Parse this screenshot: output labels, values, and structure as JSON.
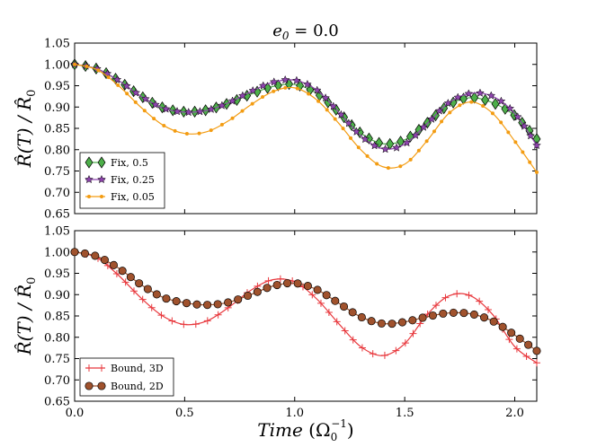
{
  "chart_data": {
    "type": "line",
    "title": "e_0 = 0.0",
    "title_parts": {
      "var": "e",
      "sub": "0",
      "rest": " = 0.0"
    },
    "xlabel": "Time (Ω_0^-1)",
    "xlabel_parts": {
      "main": "Time",
      "open": " (Ω",
      "sub": "0",
      "sup": "−1",
      "close": ")"
    },
    "ylabel": "R̂(T) / R̂_0",
    "ylabel_parts": {
      "num": "R̂(T) / R̂",
      "sub": "0"
    },
    "xlim": [
      0.0,
      2.1
    ],
    "xticks": [
      "0.0",
      "0.5",
      "1.0",
      "1.5",
      "2.0"
    ],
    "xtick_values": [
      0.0,
      0.5,
      1.0,
      1.5,
      2.0
    ],
    "ylim": [
      0.65,
      1.05
    ],
    "yticks": [
      "0.65",
      "0.70",
      "0.75",
      "0.80",
      "0.85",
      "0.90",
      "0.95",
      "1.00",
      "1.05"
    ],
    "ytick_values": [
      0.65,
      0.7,
      0.75,
      0.8,
      0.85,
      0.9,
      0.95,
      1.0,
      1.05
    ],
    "panels": [
      {
        "name": "top",
        "legend_position": "lower-left",
        "series": [
          {
            "name": "Fix, 0.5",
            "color": "#4daf4a",
            "marker": "diamond",
            "x": [
              0.0,
              0.1,
              0.2,
              0.3,
              0.4,
              0.5,
              0.6,
              0.7,
              0.8,
              0.9,
              1.0,
              1.1,
              1.2,
              1.3,
              1.4,
              1.5,
              1.6,
              1.7,
              1.8,
              1.9,
              2.0,
              2.1
            ],
            "values": [
              1.0,
              0.99,
              0.962,
              0.926,
              0.899,
              0.889,
              0.893,
              0.909,
              0.93,
              0.948,
              0.953,
              0.932,
              0.888,
              0.839,
              0.814,
              0.823,
              0.862,
              0.905,
              0.922,
              0.91,
              0.88,
              0.825
            ]
          },
          {
            "name": "Fix, 0.25",
            "color": "#8e44ad",
            "marker": "star",
            "x": [
              0.0,
              0.1,
              0.2,
              0.3,
              0.4,
              0.5,
              0.6,
              0.7,
              0.8,
              0.9,
              1.0,
              1.1,
              1.2,
              1.3,
              1.4,
              1.5,
              1.6,
              1.7,
              1.8,
              1.9,
              2.0,
              2.1
            ],
            "values": [
              1.0,
              0.99,
              0.962,
              0.926,
              0.898,
              0.888,
              0.892,
              0.91,
              0.936,
              0.958,
              0.963,
              0.94,
              0.888,
              0.833,
              0.802,
              0.813,
              0.86,
              0.91,
              0.932,
              0.925,
              0.885,
              0.81
            ]
          },
          {
            "name": "Fix, 0.05",
            "color": "#f39c12",
            "marker": "dot",
            "x": [
              0.0,
              0.1,
              0.2,
              0.3,
              0.4,
              0.5,
              0.6,
              0.7,
              0.8,
              0.9,
              1.0,
              1.1,
              1.2,
              1.3,
              1.4,
              1.5,
              1.6,
              1.7,
              1.8,
              1.9,
              2.0,
              2.1
            ],
            "values": [
              1.0,
              0.988,
              0.95,
              0.9,
              0.858,
              0.838,
              0.842,
              0.868,
              0.905,
              0.936,
              0.945,
              0.917,
              0.862,
              0.8,
              0.76,
              0.766,
              0.82,
              0.885,
              0.912,
              0.885,
              0.82,
              0.747
            ]
          }
        ]
      },
      {
        "name": "bottom",
        "legend_position": "lower-left",
        "series": [
          {
            "name": "Bound, 3D",
            "color": "#e8383d",
            "marker": "plus",
            "x": [
              0.0,
              0.1,
              0.2,
              0.3,
              0.4,
              0.5,
              0.6,
              0.7,
              0.8,
              0.9,
              1.0,
              1.1,
              1.2,
              1.3,
              1.4,
              1.5,
              1.6,
              1.7,
              1.8,
              1.9,
              2.0,
              2.1
            ],
            "values": [
              1.0,
              0.987,
              0.945,
              0.893,
              0.85,
              0.83,
              0.838,
              0.87,
              0.91,
              0.935,
              0.93,
              0.89,
              0.832,
              0.778,
              0.757,
              0.785,
              0.852,
              0.897,
              0.897,
              0.853,
              0.778,
              0.74
            ]
          },
          {
            "name": "Bound, 2D",
            "color": "#a0522d",
            "marker": "circle",
            "x": [
              0.0,
              0.1,
              0.2,
              0.3,
              0.4,
              0.5,
              0.6,
              0.7,
              0.8,
              0.9,
              1.0,
              1.1,
              1.2,
              1.3,
              1.4,
              1.5,
              1.6,
              1.7,
              1.8,
              1.9,
              2.0,
              2.1
            ],
            "values": [
              1.0,
              0.99,
              0.962,
              0.924,
              0.894,
              0.881,
              0.876,
              0.882,
              0.9,
              0.92,
              0.927,
              0.912,
              0.88,
              0.848,
              0.832,
              0.836,
              0.848,
              0.857,
              0.855,
              0.838,
              0.805,
              0.768
            ]
          }
        ]
      }
    ]
  }
}
